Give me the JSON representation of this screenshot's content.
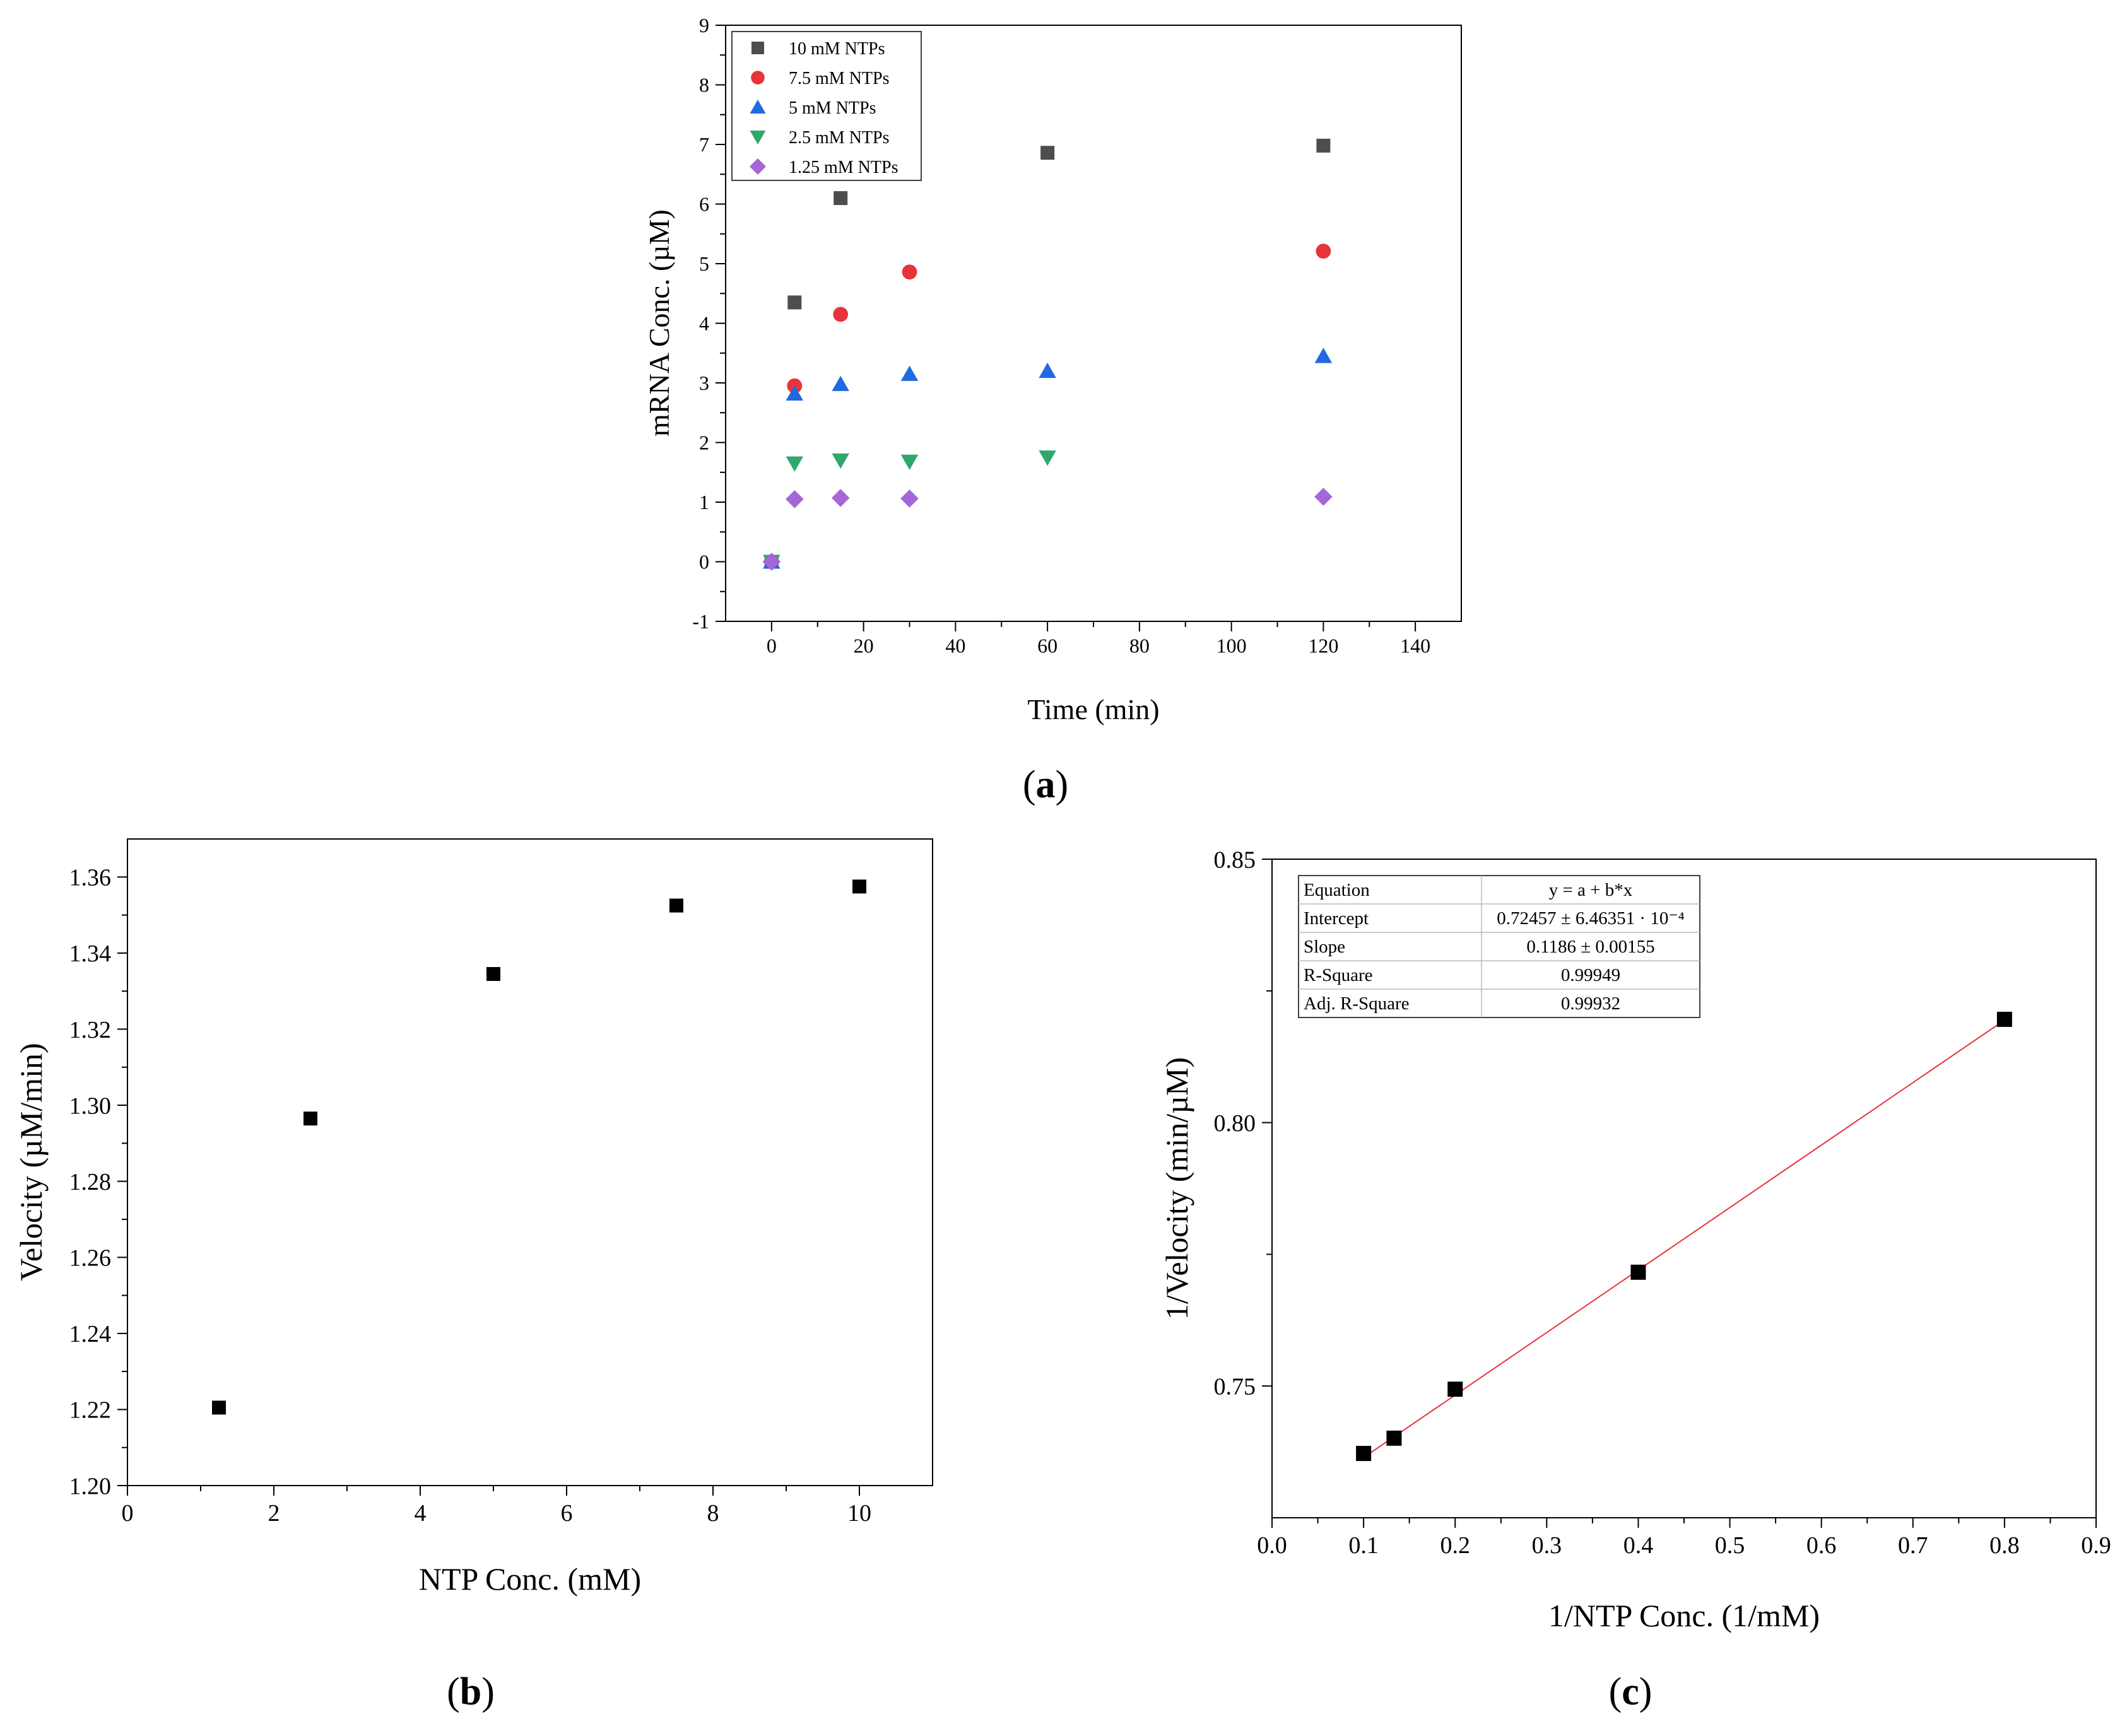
{
  "chart_data": [
    {
      "id": "a",
      "panel_label": "a",
      "type": "scatter",
      "title": "",
      "xlabel": "Time (min)",
      "ylabel": "mRNA Conc. (µM)",
      "xlim": [
        -10,
        150
      ],
      "ylim": [
        -1,
        9
      ],
      "xticks": [
        "0",
        "20",
        "40",
        "60",
        "80",
        "100",
        "120",
        "140"
      ],
      "yticks": [
        "-1",
        "0",
        "1",
        "2",
        "3",
        "4",
        "5",
        "6",
        "7",
        "8",
        "9"
      ],
      "legend_position": "top-left",
      "series": [
        {
          "name": "10 mM NTPs",
          "marker": "square",
          "color": "#4d4d4d",
          "points": [
            [
              0,
              0.0
            ],
            [
              5,
              4.35
            ],
            [
              15,
              6.1
            ],
            [
              60,
              6.86
            ],
            [
              120,
              6.98
            ]
          ]
        },
        {
          "name": "7.5 mM NTPs",
          "marker": "circle",
          "color": "#e8333a",
          "points": [
            [
              0,
              0.0
            ],
            [
              5,
              2.95
            ],
            [
              15,
              4.15
            ],
            [
              30,
              4.86
            ],
            [
              120,
              5.21
            ]
          ]
        },
        {
          "name": "5 mM NTPs",
          "marker": "triangle-up",
          "color": "#1f6ae0",
          "points": [
            [
              0,
              0.0
            ],
            [
              5,
              2.82
            ],
            [
              15,
              2.98
            ],
            [
              30,
              3.15
            ],
            [
              60,
              3.2
            ],
            [
              120,
              3.45
            ]
          ]
        },
        {
          "name": "2.5 mM NTPs",
          "marker": "triangle-down",
          "color": "#2ea86b",
          "points": [
            [
              0,
              0.0
            ],
            [
              5,
              1.65
            ],
            [
              15,
              1.7
            ],
            [
              30,
              1.68
            ],
            [
              60,
              1.75
            ]
          ]
        },
        {
          "name": "1.25 mM NTPs",
          "marker": "diamond",
          "color": "#a566d8",
          "points": [
            [
              0,
              0.0
            ],
            [
              5,
              1.05
            ],
            [
              15,
              1.07
            ],
            [
              30,
              1.06
            ],
            [
              120,
              1.09
            ]
          ]
        }
      ]
    },
    {
      "id": "b",
      "panel_label": "b",
      "type": "scatter",
      "title": "",
      "xlabel": "NTP Conc. (mM)",
      "ylabel": "Velocity (µM/min)",
      "xlim": [
        0,
        11
      ],
      "ylim": [
        1.2,
        1.37
      ],
      "xticks": [
        "0",
        "2",
        "4",
        "6",
        "8",
        "10"
      ],
      "yticks": [
        "1.20",
        "1.22",
        "1.24",
        "1.26",
        "1.28",
        "1.30",
        "1.32",
        "1.34",
        "1.36"
      ],
      "series": [
        {
          "name": "Velocity",
          "marker": "square",
          "color": "#000000",
          "points": [
            [
              1.25,
              1.2205
            ],
            [
              2.5,
              1.2965
            ],
            [
              5,
              1.3345
            ],
            [
              7.5,
              1.3525
            ],
            [
              10,
              1.3575
            ]
          ]
        }
      ]
    },
    {
      "id": "c",
      "panel_label": "c",
      "type": "scatter",
      "title": "",
      "xlabel": "1/NTP Conc. (1/mM)",
      "ylabel": "1/Velocity (min/µM)",
      "xlim": [
        0,
        0.9
      ],
      "ylim": [
        0.725,
        0.85
      ],
      "xticks": [
        "0.0",
        "0.1",
        "0.2",
        "0.3",
        "0.4",
        "0.5",
        "0.6",
        "0.7",
        "0.8",
        "0.9"
      ],
      "yticks": [
        "0.75",
        "0.80",
        "0.85"
      ],
      "fit_line": {
        "color": "#e8333a",
        "intercept": 0.72457,
        "slope": 0.1186,
        "x_range": [
          0.1,
          0.8
        ]
      },
      "fit_table": [
        [
          "Equation",
          "y = a + b*x"
        ],
        [
          "Intercept",
          "0.72457 ± 6.46351 · 10⁻⁴"
        ],
        [
          "Slope",
          "0.1186 ± 0.00155"
        ],
        [
          "R-Square",
          "0.99949"
        ],
        [
          "Adj. R-Square",
          "0.99932"
        ]
      ],
      "series": [
        {
          "name": "1/Velocity",
          "marker": "square",
          "color": "#000000",
          "points": [
            [
              0.1,
              0.7372
            ],
            [
              0.1333,
              0.7401
            ],
            [
              0.2,
              0.7494
            ],
            [
              0.4,
              0.7716
            ],
            [
              0.8,
              0.8196
            ]
          ]
        }
      ]
    }
  ]
}
